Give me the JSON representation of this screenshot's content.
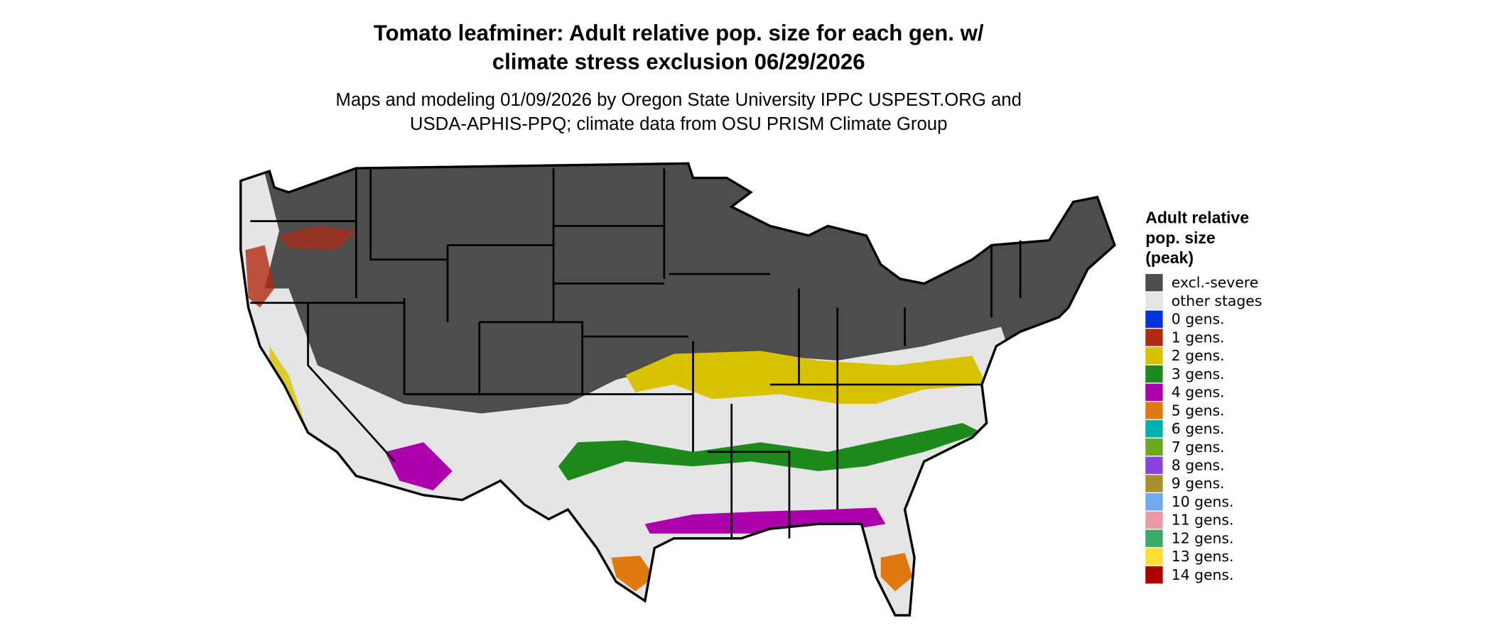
{
  "title": [
    "Tomato leafminer: Adult relative pop. size for each gen. w/",
    "climate stress exclusion 06/29/2026"
  ],
  "subtitle": [
    "Maps and modeling 01/09/2026 by Oregon State University IPPC USPEST.ORG and",
    "USDA-APHIS-PPQ; climate data from OSU PRISM Climate Group"
  ],
  "legend": {
    "title": [
      "Adult relative",
      "pop. size",
      "(peak)"
    ],
    "items": [
      {
        "label": "excl.-severe",
        "color": "#4d4d4d"
      },
      {
        "label": "other stages",
        "color": "#e5e5e5"
      },
      {
        "label": "0 gens.",
        "color": "#0033dd"
      },
      {
        "label": "1 gens.",
        "color": "#b22a12"
      },
      {
        "label": "2 gens.",
        "color": "#d9c300"
      },
      {
        "label": "3 gens.",
        "color": "#1e8a1e"
      },
      {
        "label": "4 gens.",
        "color": "#ad00ad"
      },
      {
        "label": "5 gens.",
        "color": "#e07a10"
      },
      {
        "label": "6 gens.",
        "color": "#00b0b0"
      },
      {
        "label": "7 gens.",
        "color": "#6aaa1a"
      },
      {
        "label": "8 gens.",
        "color": "#8a44dd"
      },
      {
        "label": "9 gens.",
        "color": "#a89030"
      },
      {
        "label": "10 gens.",
        "color": "#70aaee"
      },
      {
        "label": "11 gens.",
        "color": "#ee99aa"
      },
      {
        "label": "12 gens.",
        "color": "#3aaa6a"
      },
      {
        "label": "13 gens.",
        "color": "#ffdd33"
      },
      {
        "label": "14 gens.",
        "color": "#aa0000"
      }
    ]
  }
}
